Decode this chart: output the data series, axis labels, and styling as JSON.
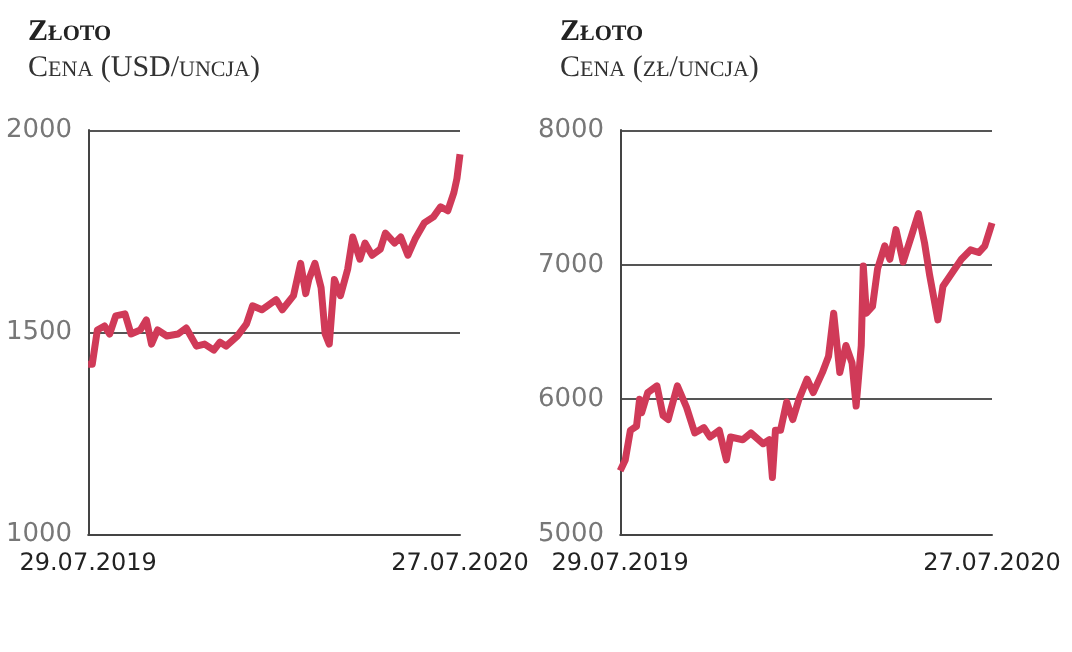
{
  "chart_data": [
    {
      "type": "line",
      "title": "Złoto",
      "subtitle": "Cena (USD/uncja)",
      "xlim": [
        "2019-07-29",
        "2020-07-27"
      ],
      "xticks": [
        {
          "value": "2019-07-29",
          "label": "29.07.2019"
        },
        {
          "value": "2020-07-27",
          "label": "27.07.2020"
        }
      ],
      "ylim": [
        1000,
        2000
      ],
      "yticks": [
        1000,
        1500,
        2000
      ],
      "grid": "y",
      "marker": "none",
      "series": [
        {
          "color": "#d03a58",
          "x": [
            "2019-07-29",
            "2019-08-02",
            "2019-08-07",
            "2019-08-14",
            "2019-08-19",
            "2019-08-25",
            "2019-09-03",
            "2019-09-09",
            "2019-09-18",
            "2019-09-24",
            "2019-09-29",
            "2019-10-05",
            "2019-10-14",
            "2019-10-25",
            "2019-11-02",
            "2019-11-12",
            "2019-11-20",
            "2019-11-29",
            "2019-12-05",
            "2019-12-11",
            "2019-12-22",
            "2019-12-31",
            "2020-01-06",
            "2020-01-15",
            "2020-01-29",
            "2020-02-04",
            "2020-02-15",
            "2020-02-22",
            "2020-02-27",
            "2020-03-01",
            "2020-03-07",
            "2020-03-13",
            "2020-03-17",
            "2020-03-21",
            "2020-03-26",
            "2020-04-01",
            "2020-04-08",
            "2020-04-13",
            "2020-04-20",
            "2020-04-25",
            "2020-05-02",
            "2020-05-10",
            "2020-05-15",
            "2020-05-24",
            "2020-05-30",
            "2020-06-06",
            "2020-06-13",
            "2020-06-22",
            "2020-07-01",
            "2020-07-08",
            "2020-07-15",
            "2020-07-21",
            "2020-07-24",
            "2020-07-27"
          ],
          "values": [
            1420,
            1420,
            1505,
            1515,
            1495,
            1540,
            1545,
            1495,
            1505,
            1530,
            1470,
            1505,
            1490,
            1495,
            1510,
            1465,
            1470,
            1455,
            1475,
            1465,
            1490,
            1520,
            1565,
            1555,
            1580,
            1555,
            1590,
            1670,
            1595,
            1630,
            1670,
            1610,
            1495,
            1470,
            1630,
            1590,
            1655,
            1735,
            1680,
            1720,
            1690,
            1705,
            1745,
            1720,
            1735,
            1690,
            1730,
            1770,
            1785,
            1810,
            1800,
            1845,
            1880,
            1940
          ]
        }
      ]
    },
    {
      "type": "line",
      "title": "Złoto",
      "subtitle": "Cena (zł/uncja)",
      "xlim": [
        "2019-07-29",
        "2020-07-27"
      ],
      "xticks": [
        {
          "value": "2019-07-29",
          "label": "29.07.2019"
        },
        {
          "value": "2020-07-27",
          "label": "27.07.2020"
        }
      ],
      "ylim": [
        5000,
        8000
      ],
      "yticks": [
        5000,
        6000,
        7000,
        8000
      ],
      "grid": "y",
      "marker": "none",
      "series": [
        {
          "color": "#d03a58",
          "x": [
            "2019-07-29",
            "2019-08-03",
            "2019-08-08",
            "2019-08-14",
            "2019-08-17",
            "2019-08-19",
            "2019-08-25",
            "2019-09-03",
            "2019-09-09",
            "2019-09-14",
            "2019-09-23",
            "2019-10-02",
            "2019-10-10",
            "2019-10-19",
            "2019-10-25",
            "2019-11-03",
            "2019-11-10",
            "2019-11-14",
            "2019-11-26",
            "2019-12-04",
            "2019-12-16",
            "2019-12-22",
            "2019-12-25",
            "2019-12-28",
            "2020-01-02",
            "2020-01-08",
            "2020-01-14",
            "2020-01-20",
            "2020-01-28",
            "2020-02-03",
            "2020-02-12",
            "2020-02-18",
            "2020-02-23",
            "2020-02-29",
            "2020-03-06",
            "2020-03-12",
            "2020-03-16",
            "2020-03-21",
            "2020-03-23",
            "2020-03-26",
            "2020-04-01",
            "2020-04-06",
            "2020-04-13",
            "2020-04-18",
            "2020-04-24",
            "2020-05-01",
            "2020-05-09",
            "2020-05-16",
            "2020-05-22",
            "2020-05-27",
            "2020-06-04",
            "2020-06-09",
            "2020-06-18",
            "2020-06-27",
            "2020-07-06",
            "2020-07-14",
            "2020-07-20",
            "2020-07-25",
            "2020-07-27"
          ],
          "values": [
            5470,
            5550,
            5770,
            5800,
            6000,
            5900,
            6050,
            6100,
            5880,
            5850,
            6100,
            5940,
            5750,
            5790,
            5720,
            5770,
            5550,
            5720,
            5700,
            5750,
            5670,
            5700,
            5420,
            5770,
            5770,
            5980,
            5850,
            6000,
            6150,
            6050,
            6200,
            6320,
            6640,
            6200,
            6400,
            6270,
            5950,
            6400,
            6990,
            6640,
            6690,
            6970,
            7140,
            7040,
            7260,
            7020,
            7210,
            7380,
            7160,
            6920,
            6590,
            6840,
            6940,
            7040,
            7110,
            7090,
            7140,
            7260,
            7310
          ]
        }
      ]
    }
  ]
}
